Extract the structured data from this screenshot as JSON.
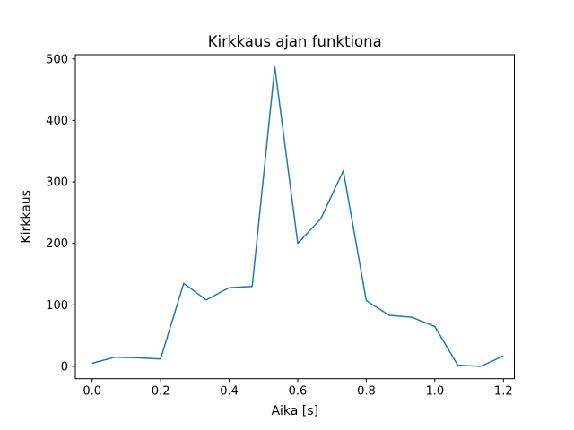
{
  "figure": {
    "background": "#ffffff",
    "text_color": "#000000"
  },
  "chart_data": {
    "type": "line",
    "title": "Kirkkaus ajan funktiona",
    "xlabel": "Aika [s]",
    "ylabel": "Kirkkaus",
    "x": [
      0.0,
      0.067,
      0.133,
      0.2,
      0.267,
      0.333,
      0.4,
      0.467,
      0.533,
      0.6,
      0.667,
      0.733,
      0.8,
      0.867,
      0.933,
      1.0,
      1.067,
      1.133,
      1.2
    ],
    "y": [
      5,
      15,
      14,
      12,
      135,
      108,
      128,
      130,
      487,
      200,
      240,
      318,
      107,
      83,
      80,
      65,
      2,
      0,
      17
    ],
    "xticks": [
      0.0,
      0.2,
      0.4,
      0.6,
      0.8,
      1.0,
      1.2
    ],
    "xtick_labels": [
      "0.0",
      "0.2",
      "0.4",
      "0.6",
      "0.8",
      "1.0",
      "1.2"
    ],
    "yticks": [
      0,
      100,
      200,
      300,
      400,
      500
    ],
    "ytick_labels": [
      "0",
      "100",
      "200",
      "300",
      "400",
      "500"
    ],
    "xlim": [
      -0.049,
      1.232
    ],
    "ylim": [
      -20,
      507
    ],
    "line_color": "#1f77b4",
    "spine_color": "#000000",
    "grid": false,
    "legend": null
  }
}
